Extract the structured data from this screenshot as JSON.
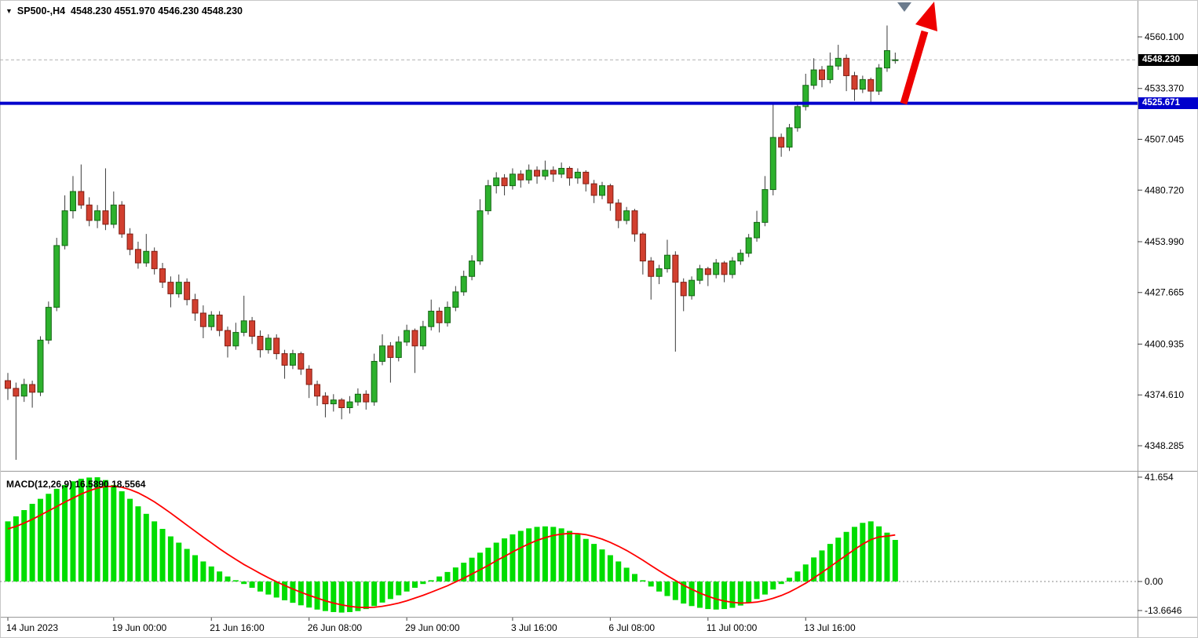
{
  "header": {
    "symbol_line": "SP500-,H4  4548.230 4551.970 4546.230 4548.230"
  },
  "price_axis": {
    "ticks": [
      "4560.100",
      "4533.370",
      "4507.045",
      "4480.720",
      "4453.990",
      "4427.665",
      "4400.935",
      "4374.610",
      "4348.285"
    ],
    "current_price_tag": "4548.230",
    "level_tag": "4525.671"
  },
  "macd_panel": {
    "label": "MACD(12,26,9) 16.5890 18.5564",
    "ticks": [
      "41.654",
      "0.00",
      "-13.6646"
    ]
  },
  "time_axis": {
    "labels": [
      "14 Jun 2023",
      "19 Jun 00:00",
      "21 Jun 16:00",
      "26 Jun 08:00",
      "29 Jun 00:00",
      "3 Jul 16:00",
      "6 Jul 08:00",
      "11 Jul 00:00",
      "13 Jul 16:00"
    ],
    "candle_indices": [
      0,
      13,
      25,
      37,
      49,
      62,
      74,
      86,
      98
    ]
  },
  "colors": {
    "bull": "#2db12d",
    "bull_border": "#156615",
    "bear": "#d23f2f",
    "bear_border": "#7e1e14",
    "wick": "#3a3a3a",
    "level_line": "#0000cc",
    "current_line": "#b0b0b0",
    "macd_hist": "#00dd00",
    "macd_signal": "#ff0000",
    "arrow": "#ee0000",
    "marker": "#6b7b8d",
    "axis_text": "#000000",
    "separator": "#9a9a9a"
  },
  "chart_data": {
    "type": "candlestick",
    "symbol": "SP500-",
    "timeframe": "H4",
    "ohlc_line": {
      "open": 4548.23,
      "high": 4551.97,
      "low": 4546.23,
      "close": 4548.23
    },
    "price_ylim": [
      4338,
      4572
    ],
    "price_axis_ticks": [
      4560.1,
      4533.37,
      4507.045,
      4480.72,
      4453.99,
      4427.665,
      4400.935,
      4374.61,
      4348.285
    ],
    "current_price": 4548.23,
    "level_price": 4525.671,
    "annotations": [
      "blue horizontal support/resistance line at 4525.671",
      "large red up arrow at right edge from the blue line to chart top",
      "small gray down-triangle marker at top right"
    ],
    "candles_ohlc": [
      [
        4382,
        4386,
        4372,
        4378
      ],
      [
        4378,
        4381,
        4341,
        4374
      ],
      [
        4374,
        4383,
        4371,
        4380
      ],
      [
        4380,
        4382,
        4368,
        4376
      ],
      [
        4376,
        4405,
        4374,
        4403
      ],
      [
        4403,
        4423,
        4401,
        4420
      ],
      [
        4420,
        4456,
        4418,
        4452
      ],
      [
        4452,
        4478,
        4450,
        4470
      ],
      [
        4470,
        4488,
        4466,
        4480
      ],
      [
        4480,
        4494,
        4471,
        4473
      ],
      [
        4473,
        4477,
        4462,
        4465
      ],
      [
        4465,
        4473,
        4461,
        4470
      ],
      [
        4470,
        4492,
        4460,
        4463
      ],
      [
        4463,
        4480,
        4461,
        4473
      ],
      [
        4473,
        4475,
        4456,
        4458
      ],
      [
        4458,
        4461,
        4447,
        4450
      ],
      [
        4450,
        4454,
        4440,
        4443
      ],
      [
        4443,
        4458,
        4441,
        4449
      ],
      [
        4449,
        4451,
        4437,
        4440
      ],
      [
        4440,
        4443,
        4430,
        4433
      ],
      [
        4433,
        4436,
        4420,
        4427
      ],
      [
        4427,
        4437,
        4425,
        4433
      ],
      [
        4433,
        4435,
        4421,
        4424
      ],
      [
        4424,
        4427,
        4413,
        4417
      ],
      [
        4417,
        4421,
        4404,
        4410
      ],
      [
        4410,
        4418,
        4408,
        4416
      ],
      [
        4416,
        4418,
        4405,
        4408
      ],
      [
        4408,
        4410,
        4394,
        4400
      ],
      [
        4400,
        4412,
        4398,
        4407
      ],
      [
        4407,
        4426,
        4405,
        4413
      ],
      [
        4413,
        4415,
        4401,
        4405
      ],
      [
        4405,
        4408,
        4394,
        4398
      ],
      [
        4398,
        4406,
        4396,
        4404
      ],
      [
        4404,
        4406,
        4393,
        4396
      ],
      [
        4396,
        4398,
        4383,
        4390
      ],
      [
        4390,
        4398,
        4388,
        4396
      ],
      [
        4396,
        4397,
        4385,
        4388
      ],
      [
        4388,
        4390,
        4373,
        4380
      ],
      [
        4380,
        4382,
        4369,
        4374
      ],
      [
        4374,
        4376,
        4363,
        4370
      ],
      [
        4370,
        4375,
        4366,
        4372
      ],
      [
        4372,
        4373,
        4362,
        4368
      ],
      [
        4368,
        4374,
        4365,
        4371
      ],
      [
        4371,
        4378,
        4369,
        4375
      ],
      [
        4375,
        4377,
        4367,
        4371
      ],
      [
        4371,
        4396,
        4369,
        4392
      ],
      [
        4392,
        4406,
        4390,
        4400
      ],
      [
        4400,
        4402,
        4381,
        4394
      ],
      [
        4394,
        4405,
        4392,
        4402
      ],
      [
        4402,
        4411,
        4400,
        4408
      ],
      [
        4408,
        4409,
        4386,
        4400
      ],
      [
        4400,
        4413,
        4398,
        4410
      ],
      [
        4410,
        4424,
        4408,
        4418
      ],
      [
        4418,
        4420,
        4407,
        4412
      ],
      [
        4412,
        4423,
        4410,
        4420
      ],
      [
        4420,
        4431,
        4418,
        4428
      ],
      [
        4428,
        4439,
        4426,
        4436
      ],
      [
        4436,
        4447,
        4434,
        4444
      ],
      [
        4444,
        4476,
        4442,
        4470
      ],
      [
        4470,
        4486,
        4468,
        4483
      ],
      [
        4483,
        4490,
        4479,
        4487
      ],
      [
        4487,
        4489,
        4478,
        4483
      ],
      [
        4483,
        4492,
        4481,
        4489
      ],
      [
        4489,
        4491,
        4482,
        4486
      ],
      [
        4486,
        4494,
        4484,
        4491
      ],
      [
        4491,
        4493,
        4484,
        4488
      ],
      [
        4488,
        4496,
        4486,
        4491
      ],
      [
        4491,
        4493,
        4485,
        4489
      ],
      [
        4489,
        4495,
        4487,
        4492
      ],
      [
        4492,
        4493,
        4483,
        4487
      ],
      [
        4487,
        4492,
        4484,
        4490
      ],
      [
        4490,
        4491,
        4480,
        4484
      ],
      [
        4484,
        4486,
        4474,
        4478
      ],
      [
        4478,
        4485,
        4476,
        4483
      ],
      [
        4483,
        4484,
        4470,
        4474
      ],
      [
        4474,
        4476,
        4461,
        4465
      ],
      [
        4465,
        4472,
        4463,
        4470
      ],
      [
        4470,
        4471,
        4454,
        4458
      ],
      [
        4458,
        4459,
        4437,
        4444
      ],
      [
        4444,
        4446,
        4424,
        4436
      ],
      [
        4436,
        4442,
        4432,
        4440
      ],
      [
        4440,
        4455,
        4438,
        4447
      ],
      [
        4447,
        4449,
        4397,
        4433
      ],
      [
        4433,
        4435,
        4418,
        4426
      ],
      [
        4426,
        4436,
        4424,
        4434
      ],
      [
        4434,
        4442,
        4432,
        4440
      ],
      [
        4440,
        4441,
        4431,
        4437
      ],
      [
        4437,
        4445,
        4435,
        4443
      ],
      [
        4443,
        4444,
        4433,
        4437
      ],
      [
        4437,
        4446,
        4435,
        4444
      ],
      [
        4444,
        4450,
        4442,
        4448
      ],
      [
        4448,
        4458,
        4446,
        4456
      ],
      [
        4456,
        4470,
        4454,
        4464
      ],
      [
        4464,
        4488,
        4462,
        4481
      ],
      [
        4481,
        4526,
        4478,
        4508
      ],
      [
        4508,
        4510,
        4498,
        4503
      ],
      [
        4503,
        4515,
        4501,
        4513
      ],
      [
        4513,
        4526,
        4511,
        4524
      ],
      [
        4524,
        4541,
        4522,
        4535
      ],
      [
        4535,
        4549,
        4533,
        4543
      ],
      [
        4543,
        4545,
        4534,
        4538
      ],
      [
        4538,
        4552,
        4536,
        4545
      ],
      [
        4545,
        4556,
        4543,
        4549
      ],
      [
        4549,
        4551,
        4532,
        4540
      ],
      [
        4540,
        4542,
        4527,
        4533
      ],
      [
        4533,
        4540,
        4531,
        4538
      ],
      [
        4538,
        4539,
        4526,
        4532
      ],
      [
        4532,
        4546,
        4530,
        4544
      ],
      [
        4544,
        4566,
        4542,
        4553
      ],
      [
        4548.23,
        4551.97,
        4546.23,
        4548.23
      ]
    ],
    "macd": {
      "name": "MACD(12,26,9)",
      "range": [
        -13.6646,
        41.654
      ],
      "current": {
        "macd": 16.589,
        "signal": 18.5564
      },
      "histogram": [
        24,
        26,
        28.5,
        31,
        33,
        35,
        37,
        38.5,
        40,
        41,
        41.5,
        41.6,
        40.5,
        38.5,
        36,
        33,
        30,
        27,
        24,
        21,
        18,
        15.5,
        13,
        10.5,
        8,
        6,
        4,
        2,
        0.5,
        -1,
        -2.5,
        -4,
        -5.2,
        -6.4,
        -7.5,
        -8.5,
        -9.5,
        -10.4,
        -11.2,
        -11.8,
        -12.2,
        -12.4,
        -12.2,
        -11.8,
        -11,
        -9.8,
        -8.4,
        -7,
        -5.5,
        -4,
        -2.5,
        -1,
        0.5,
        2,
        3.8,
        5.6,
        7.5,
        9.5,
        11.5,
        13.5,
        15.5,
        17.2,
        18.8,
        20.2,
        21.2,
        21.8,
        22,
        21.8,
        21.2,
        20.2,
        18.8,
        17,
        15,
        12.8,
        10.5,
        8,
        5.5,
        3,
        0.5,
        -2,
        -4,
        -5.8,
        -7.4,
        -8.8,
        -9.8,
        -10.5,
        -11,
        -11.2,
        -11,
        -10.5,
        -9.6,
        -8.4,
        -7,
        -5.2,
        -3.2,
        -1,
        1.5,
        4,
        6.8,
        9.6,
        12.4,
        15,
        17.5,
        19.8,
        21.8,
        23.4,
        24,
        22,
        19.5,
        16.59
      ],
      "signal": [
        21,
        22,
        23.3,
        24.8,
        26.5,
        28.2,
        29.9,
        31.7,
        33.3,
        34.9,
        36.2,
        37.3,
        37.9,
        38,
        37.6,
        36.7,
        35.4,
        33.7,
        31.8,
        29.6,
        27.3,
        24.9,
        22.5,
        20.1,
        17.7,
        15.4,
        13.1,
        10.9,
        8.8,
        6.8,
        5,
        3.2,
        1.5,
        -0.1,
        -1.6,
        -3,
        -4.3,
        -5.5,
        -6.6,
        -7.7,
        -8.6,
        -9.3,
        -9.9,
        -10.3,
        -10.4,
        -10.3,
        -9.9,
        -9.3,
        -8.6,
        -7.7,
        -6.6,
        -5.5,
        -4.3,
        -3,
        -1.7,
        -0.2,
        1.3,
        3,
        4.7,
        6.4,
        8.3,
        10,
        11.8,
        13.5,
        15,
        16.4,
        17.5,
        18.4,
        18.9,
        19.2,
        19.1,
        18.7,
        17.9,
        16.9,
        15.6,
        14.1,
        12.4,
        10.5,
        8.5,
        6.4,
        4.3,
        2.3,
        0.4,
        -1.5,
        -3.1,
        -4.6,
        -5.9,
        -7,
        -7.8,
        -8.3,
        -8.6,
        -8.5,
        -8.2,
        -7.6,
        -6.7,
        -5.6,
        -4.2,
        -2.5,
        -0.7,
        1.4,
        3.6,
        5.9,
        8.2,
        10.5,
        12.8,
        14.9,
        16.7,
        17.8,
        18.1,
        18.56
      ]
    }
  }
}
